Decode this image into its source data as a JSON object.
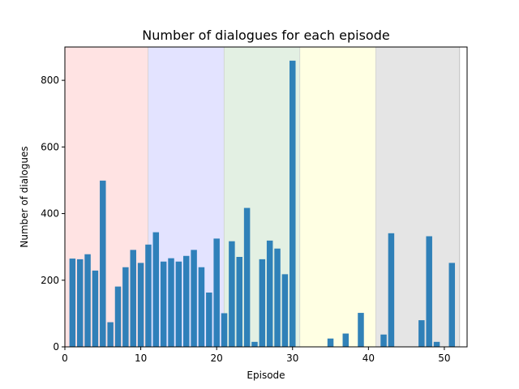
{
  "chart_data": {
    "type": "bar",
    "title": "Number of dialogues for each episode",
    "xlabel": "Episode",
    "ylabel": "Number of dialogues",
    "xlim": [
      0,
      53
    ],
    "ylim": [
      0,
      900
    ],
    "xticks": [
      0,
      10,
      20,
      30,
      40,
      50
    ],
    "yticks": [
      0,
      200,
      400,
      600,
      800
    ],
    "grid": false,
    "bar_color": "#1f77b4",
    "shaded_regions": [
      {
        "x_start": 0,
        "x_end": 11,
        "color": "#ffe3e3"
      },
      {
        "x_start": 11,
        "x_end": 21,
        "color": "#e3e3ff"
      },
      {
        "x_start": 21,
        "x_end": 31,
        "color": "#e3f0e3"
      },
      {
        "x_start": 31,
        "x_end": 41,
        "color": "#ffffe3"
      },
      {
        "x_start": 41,
        "x_end": 52,
        "color": "#e5e5e5"
      }
    ],
    "x": [
      1,
      2,
      3,
      4,
      5,
      6,
      7,
      8,
      9,
      10,
      11,
      12,
      13,
      14,
      15,
      16,
      17,
      18,
      19,
      20,
      21,
      22,
      23,
      24,
      25,
      26,
      27,
      28,
      29,
      30,
      31,
      32,
      33,
      34,
      35,
      36,
      37,
      38,
      39,
      40,
      41,
      42,
      43,
      44,
      45,
      46,
      47,
      48,
      49,
      50,
      51
    ],
    "values": [
      265,
      263,
      278,
      229,
      499,
      74,
      181,
      239,
      291,
      252,
      307,
      344,
      256,
      266,
      256,
      273,
      291,
      239,
      163,
      325,
      101,
      317,
      270,
      417,
      15,
      263,
      319,
      295,
      218,
      859,
      0,
      0,
      0,
      0,
      25,
      0,
      40,
      0,
      102,
      0,
      0,
      37,
      341,
      0,
      0,
      0,
      80,
      332,
      15,
      0,
      252
    ]
  }
}
